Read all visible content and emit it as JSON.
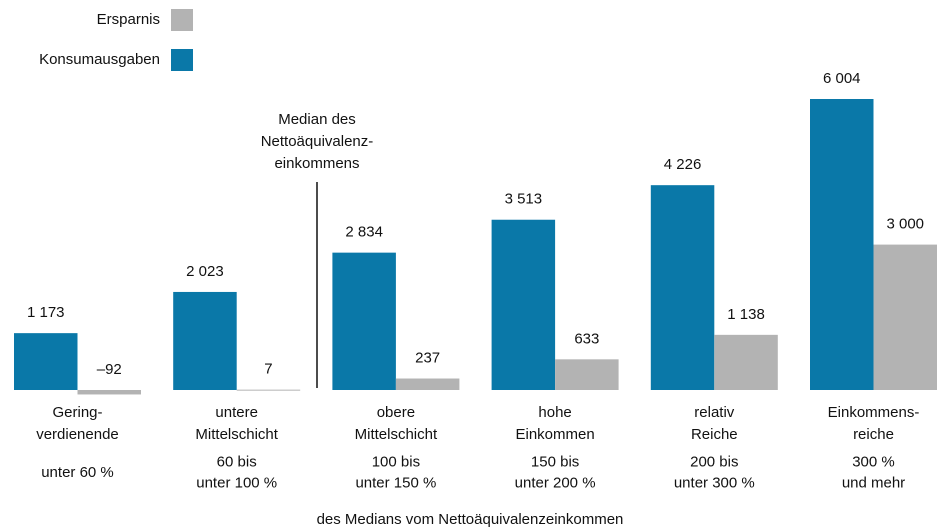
{
  "chart_data": {
    "type": "bar",
    "categories": [
      [
        "Gering-",
        "verdienende"
      ],
      [
        "untere",
        "Mittelschicht"
      ],
      [
        "obere",
        "Mittelschicht"
      ],
      [
        "hohe",
        "Einkommen"
      ],
      [
        "relativ",
        "Reiche"
      ],
      [
        "Einkommens-",
        "reiche"
      ]
    ],
    "income_ranges": [
      [
        "unter 60 %"
      ],
      [
        "60 bis",
        "unter 100 %"
      ],
      [
        "100 bis",
        "unter 150 %"
      ],
      [
        "150 bis",
        "unter 200 %"
      ],
      [
        "200 bis",
        "unter 300 %"
      ],
      [
        "300 %",
        "und mehr"
      ]
    ],
    "series": [
      {
        "name": "Konsumausgaben",
        "color": "#0a78a8",
        "values": [
          1173,
          2023,
          2834,
          3513,
          4226,
          6004
        ],
        "value_labels": [
          "1 173",
          "2 023",
          "2 834",
          "3 513",
          "4 226",
          "6 004"
        ]
      },
      {
        "name": "Ersparnis",
        "color": "#b3b3b3",
        "values": [
          -92,
          7,
          237,
          633,
          1138,
          3000
        ],
        "value_labels": [
          "–92",
          "7",
          "237",
          "633",
          "1 138",
          "3 000"
        ]
      }
    ],
    "annotation": [
      "Median des",
      "Nettoäquivalenz-",
      "einkommens"
    ],
    "x_label": "des Medians vom Nettoäquivalenzeinkommen"
  }
}
